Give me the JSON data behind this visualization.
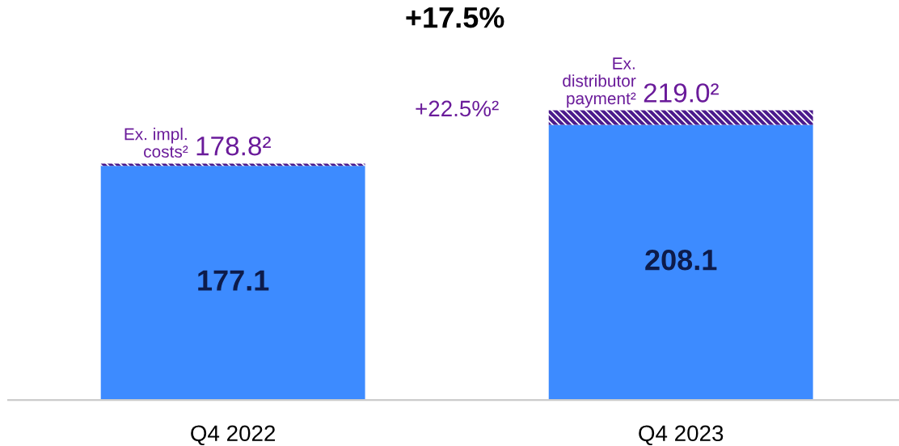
{
  "chart_data": {
    "type": "bar",
    "stacked": true,
    "title": "+17.5%",
    "categories": [
      "Q4 2022",
      "Q4 2023"
    ],
    "series": [
      {
        "color": "#3d8bff",
        "values": [
          177.1,
          208.1
        ],
        "value_labels": [
          "177.1",
          "208.1"
        ]
      },
      {
        "color": "#4b1a8c",
        "values": [
          1.7,
          10.9
        ]
      }
    ],
    "totals": [
      "178.8²",
      "219.0²"
    ],
    "annotations": [
      {
        "text": "Ex. impl.\ncosts²",
        "x": "Q4 2022",
        "y": 178.8
      },
      {
        "text": "Ex.\ndistributor\npayment²",
        "x": "Q4 2023",
        "y": 219.0
      },
      "+22.5%²"
    ],
    "grid": false,
    "legend": false
  }
}
